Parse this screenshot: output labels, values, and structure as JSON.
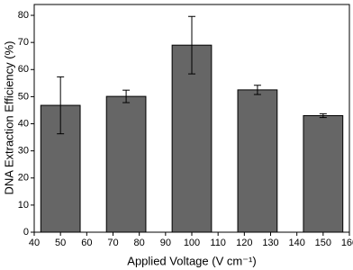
{
  "chart_data": {
    "type": "bar",
    "xlabel": "Applied Voltage (V cm⁻¹)",
    "ylabel": "DNA Extraction Efficiency (%)",
    "x": [
      50,
      75,
      100,
      125,
      150
    ],
    "values": [
      46.8,
      50.1,
      69,
      52.5,
      43
    ],
    "errors": [
      10.5,
      2.3,
      10.6,
      1.7,
      0.7
    ],
    "color": "#666666",
    "xlim": [
      40,
      160
    ],
    "xticks": [
      40,
      50,
      60,
      70,
      80,
      90,
      100,
      110,
      120,
      130,
      140,
      150,
      160
    ],
    "ylim": [
      0,
      84
    ],
    "yticks": [
      0,
      10,
      20,
      30,
      40,
      50,
      60,
      70,
      80
    ]
  }
}
